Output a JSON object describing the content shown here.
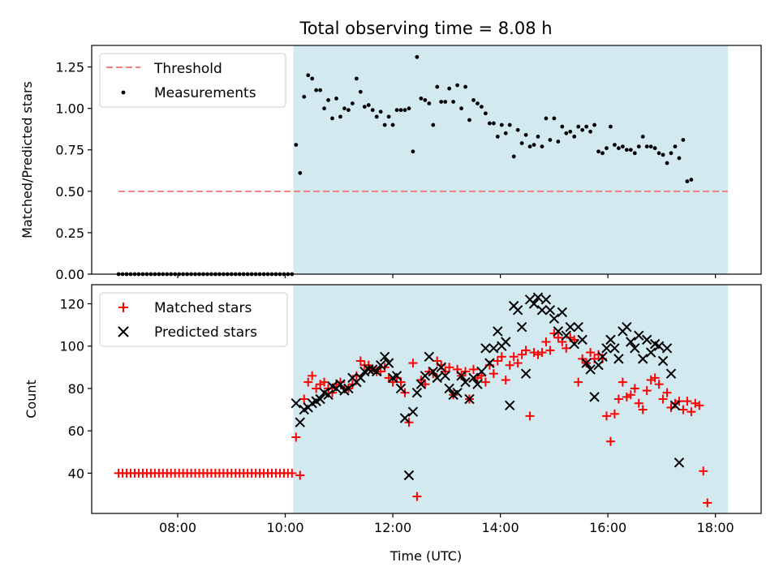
{
  "chart_data": {
    "title": "Total observing time = 8.08 h",
    "xlabel": "Time (UTC)",
    "x_unit": "hours UTC",
    "xlim": [
      6.4,
      18.85
    ],
    "x_ticks": [
      8,
      10,
      12,
      14,
      16,
      18
    ],
    "x_tick_labels": [
      "08:00",
      "10:00",
      "12:00",
      "14:00",
      "16:00",
      "18:00"
    ],
    "observing_window": {
      "start": 10.15,
      "end": 18.23,
      "color": "#d3e9f0"
    },
    "colors": {
      "threshold": "#f08080",
      "measurements": "#000000",
      "matched": "#ff0000",
      "predicted": "#000000"
    },
    "panels": [
      {
        "name": "ratio",
        "type": "scatter",
        "ylabel": "Matched/Predicted stars",
        "ylim": [
          0,
          1.38
        ],
        "y_ticks": [
          0.0,
          0.25,
          0.5,
          0.75,
          1.0,
          1.25
        ],
        "y_tick_labels": [
          "0.00",
          "0.25",
          "0.50",
          "0.75",
          "1.00",
          "1.25"
        ],
        "legend": {
          "position": "top-left",
          "entries": [
            {
              "label": "Threshold",
              "marker": "dashed-line"
            },
            {
              "label": "Measurements",
              "marker": "dot"
            }
          ]
        },
        "series": [
          {
            "name": "Threshold",
            "kind": "line",
            "x": [
              6.9,
              18.23
            ],
            "y": [
              0.5,
              0.5
            ]
          },
          {
            "name": "Measurements",
            "kind": "points",
            "x_start": 6.9,
            "x_step": 0.075,
            "y": [
              0,
              0,
              0,
              0,
              0,
              0,
              0,
              0,
              0,
              0,
              0,
              0,
              0,
              0,
              0,
              0,
              0,
              0,
              0,
              0,
              0,
              0,
              0,
              0,
              0,
              0,
              0,
              0,
              0,
              0,
              0,
              0,
              0,
              0,
              0,
              0,
              0,
              0,
              0,
              0,
              0,
              0,
              0,
              0,
              0.78,
              0.61,
              1.07,
              1.2,
              1.18,
              1.11,
              1.11,
              1.0,
              1.05,
              0.94,
              1.06,
              0.95,
              1.0,
              0.99,
              1.03,
              1.18,
              1.1,
              1.01,
              1.02,
              0.99,
              0.95,
              0.98,
              0.9,
              0.95,
              0.9,
              0.99,
              0.99,
              0.99,
              1.0,
              0.74,
              1.31,
              1.06,
              1.05,
              1.03,
              0.9,
              1.13,
              1.04,
              1.04,
              1.12,
              1.04,
              1.14,
              1.0,
              1.13,
              0.93,
              1.05,
              1.03,
              1.01,
              0.97,
              0.91,
              0.91,
              0.83,
              0.9,
              0.85,
              0.9,
              0.71,
              0.87,
              0.79,
              0.84,
              0.77,
              0.78,
              0.83,
              0.77,
              0.94,
              0.81,
              0.94,
              0.8,
              0.89,
              0.85,
              0.86,
              0.83,
              0.89,
              0.87,
              0.89,
              0.86,
              0.9,
              0.74,
              0.73,
              0.76,
              0.89,
              0.78,
              0.76,
              0.77,
              0.75,
              0.75,
              0.73,
              0.77,
              0.83,
              0.77,
              0.77,
              0.76,
              0.73,
              0.72,
              0.67,
              0.73,
              0.77,
              0.7,
              0.81,
              0.56,
              0.57
            ]
          }
        ]
      },
      {
        "name": "counts",
        "type": "scatter",
        "ylabel": "Count",
        "ylim": [
          21,
          129
        ],
        "y_ticks": [
          40,
          60,
          80,
          100,
          120
        ],
        "y_tick_labels": [
          "40",
          "60",
          "80",
          "100",
          "120"
        ],
        "legend": {
          "position": "top-left",
          "entries": [
            {
              "label": "Matched stars",
              "marker": "plus"
            },
            {
              "label": "Predicted stars",
              "marker": "x"
            }
          ]
        },
        "series": [
          {
            "name": "Matched stars",
            "kind": "plus",
            "x_start": 6.9,
            "x_step": 0.075,
            "y": [
              40,
              40,
              40,
              40,
              40,
              40,
              40,
              40,
              40,
              40,
              40,
              40,
              40,
              40,
              40,
              40,
              40,
              40,
              40,
              40,
              40,
              40,
              40,
              40,
              40,
              40,
              40,
              40,
              40,
              40,
              40,
              40,
              40,
              40,
              40,
              40,
              40,
              40,
              40,
              40,
              40,
              40,
              40,
              40,
              57,
              39,
              75,
              83,
              86,
              80,
              82,
              83,
              80,
              78,
              82,
              83,
              80,
              80,
              82,
              86,
              93,
              91,
              91,
              89,
              88,
              88,
              90,
              85,
              83,
              85,
              83,
              78,
              64,
              92,
              29,
              84,
              82,
              88,
              87,
              93,
              91,
              88,
              90,
              77,
              89,
              86,
              88,
              75,
              89,
              85,
              86,
              83,
              91,
              87,
              93,
              95,
              84,
              91,
              95,
              92,
              96,
              98,
              67,
              97,
              96,
              97,
              102,
              98,
              106,
              104,
              102,
              99,
              104,
              103,
              83,
              94,
              92,
              97,
              94,
              96,
              94,
              67,
              55,
              68,
              75,
              83,
              76,
              77,
              80,
              73,
              70,
              79,
              84,
              85,
              82,
              75,
              78,
              71,
              73,
              74,
              70,
              74,
              69,
              73,
              72,
              41,
              26
            ]
          },
          {
            "name": "Predicted stars",
            "kind": "x",
            "x_start": 6.9,
            "x_step": 0.075,
            "y": [
              null,
              null,
              null,
              null,
              null,
              null,
              null,
              null,
              null,
              null,
              null,
              null,
              null,
              null,
              null,
              null,
              null,
              null,
              null,
              null,
              null,
              null,
              null,
              null,
              null,
              null,
              null,
              null,
              null,
              null,
              null,
              null,
              null,
              null,
              null,
              null,
              null,
              null,
              null,
              null,
              null,
              null,
              null,
              null,
              73,
              64,
              70,
              71,
              73,
              74,
              75,
              78,
              77,
              81,
              80,
              82,
              79,
              80,
              85,
              83,
              85,
              88,
              89,
              89,
              88,
              91,
              95,
              92,
              85,
              86,
              80,
              66,
              39,
              69,
              78,
              82,
              86,
              95,
              88,
              85,
              90,
              86,
              80,
              77,
              78,
              86,
              83,
              75,
              85,
              82,
              88,
              99,
              92,
              99,
              107,
              100,
              102,
              72,
              119,
              117,
              109,
              87,
              122,
              120,
              123,
              117,
              122,
              117,
              113,
              107,
              116,
              105,
              109,
              101,
              109,
              103,
              92,
              89,
              76,
              91,
              95,
              99,
              103,
              99,
              94,
              107,
              109,
              102,
              99,
              105,
              94,
              103,
              97,
              101,
              100,
              93,
              99,
              87,
              72,
              45
            ]
          }
        ]
      }
    ]
  }
}
